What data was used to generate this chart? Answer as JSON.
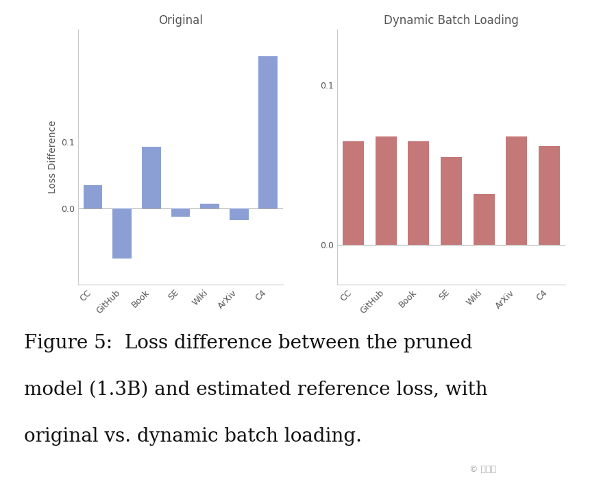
{
  "categories": [
    "CC",
    "GitHub",
    "Book",
    "SE",
    "Wiki",
    "ArXiv",
    "C4"
  ],
  "original_values": [
    0.035,
    -0.075,
    0.093,
    -0.012,
    0.007,
    -0.018,
    0.23
  ],
  "dynamic_values": [
    0.065,
    0.068,
    0.065,
    0.055,
    0.032,
    0.068,
    0.062
  ],
  "original_color": "#8c9fd4",
  "dynamic_color": "#c47878",
  "original_title": "Original",
  "dynamic_title": "Dynamic Batch Loading",
  "ylabel": "Loss Difference",
  "plot_background": "#ffffff",
  "fig_background": "#ffffff",
  "title_fontsize": 12,
  "label_fontsize": 10,
  "tick_fontsize": 9,
  "caption_line1": "Figure 5:  Loss difference between the pruned",
  "caption_line2": "model (1.3B) and estimated reference loss, with",
  "caption_line3": "original vs. dynamic batch loading.",
  "caption_fontsize": 20,
  "orig_ylim": [
    -0.115,
    0.27
  ],
  "orig_yticks": [
    0.0,
    0.1
  ],
  "dyn_ylim": [
    -0.025,
    0.135
  ],
  "dyn_yticks": [
    0.0,
    0.1
  ],
  "watermark": "© 量子位"
}
